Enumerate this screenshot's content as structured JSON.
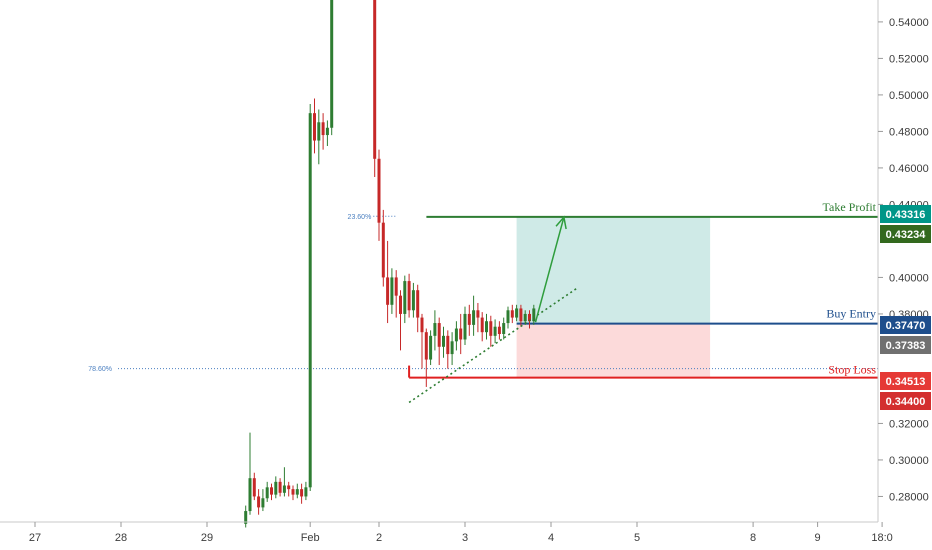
{
  "chart_data": {
    "type": "candlestick",
    "ylim": [
      0.266,
      0.552
    ],
    "x_ticks": [
      {
        "label": "27",
        "day": 0
      },
      {
        "label": "28",
        "day": 1
      },
      {
        "label": "29",
        "day": 2
      },
      {
        "label": "Feb",
        "day": 3.2
      },
      {
        "label": "2",
        "day": 4
      },
      {
        "label": "3",
        "day": 5
      },
      {
        "label": "4",
        "day": 6
      },
      {
        "label": "5",
        "day": 7
      },
      {
        "label": "8",
        "day": 8.35
      },
      {
        "label": "9",
        "day": 9.1
      },
      {
        "label": "18:0",
        "day": 9.85
      }
    ],
    "y_ticks": [
      "0.54000",
      "0.52000",
      "0.50000",
      "0.48000",
      "0.46000",
      "0.44000",
      "0.40000",
      "0.38000",
      "0.32000",
      "0.30000",
      "0.28000"
    ],
    "candles": [
      [
        2.45,
        0.265,
        0.272,
        0.263,
        0.275
      ],
      [
        2.5,
        0.272,
        0.29,
        0.27,
        0.315
      ],
      [
        2.55,
        0.29,
        0.28,
        0.278,
        0.293
      ],
      [
        2.6,
        0.28,
        0.274,
        0.27,
        0.284
      ],
      [
        2.65,
        0.274,
        0.279,
        0.272,
        0.284
      ],
      [
        2.7,
        0.279,
        0.285,
        0.277,
        0.288
      ],
      [
        2.75,
        0.285,
        0.281,
        0.278,
        0.287
      ],
      [
        2.8,
        0.281,
        0.288,
        0.279,
        0.291
      ],
      [
        2.85,
        0.288,
        0.282,
        0.28,
        0.29
      ],
      [
        2.9,
        0.282,
        0.286,
        0.28,
        0.296
      ],
      [
        2.95,
        0.286,
        0.284,
        0.28,
        0.288
      ],
      [
        3.0,
        0.284,
        0.281,
        0.278,
        0.286
      ],
      [
        3.05,
        0.281,
        0.284,
        0.279,
        0.287
      ],
      [
        3.1,
        0.284,
        0.28,
        0.276,
        0.287
      ],
      [
        3.15,
        0.28,
        0.285,
        0.278,
        0.288
      ],
      [
        3.2,
        0.285,
        0.49,
        0.283,
        0.495
      ],
      [
        3.25,
        0.49,
        0.475,
        0.468,
        0.498
      ],
      [
        3.3,
        0.475,
        0.485,
        0.462,
        0.492
      ],
      [
        3.35,
        0.485,
        0.478,
        0.47,
        0.49
      ],
      [
        3.4,
        0.478,
        0.482,
        0.472,
        0.486
      ],
      [
        3.45,
        0.482,
        0.552,
        0.478,
        0.556
      ],
      [
        3.95,
        0.552,
        0.465,
        0.455,
        0.556
      ],
      [
        4.0,
        0.465,
        0.43,
        0.42,
        0.47
      ],
      [
        4.05,
        0.43,
        0.4,
        0.395,
        0.437
      ],
      [
        4.1,
        0.4,
        0.385,
        0.375,
        0.42
      ],
      [
        4.15,
        0.385,
        0.4,
        0.38,
        0.405
      ],
      [
        4.2,
        0.4,
        0.39,
        0.378,
        0.404
      ],
      [
        4.25,
        0.39,
        0.38,
        0.36,
        0.393
      ],
      [
        4.3,
        0.38,
        0.398,
        0.375,
        0.401
      ],
      [
        4.35,
        0.398,
        0.382,
        0.378,
        0.402
      ],
      [
        4.4,
        0.382,
        0.393,
        0.378,
        0.397
      ],
      [
        4.45,
        0.393,
        0.378,
        0.37,
        0.396
      ],
      [
        4.5,
        0.378,
        0.37,
        0.35,
        0.38
      ],
      [
        4.55,
        0.37,
        0.355,
        0.34,
        0.372
      ],
      [
        4.6,
        0.355,
        0.368,
        0.352,
        0.371
      ],
      [
        4.65,
        0.368,
        0.375,
        0.36,
        0.382
      ],
      [
        4.7,
        0.375,
        0.362,
        0.352,
        0.378
      ],
      [
        4.75,
        0.362,
        0.368,
        0.356,
        0.373
      ],
      [
        4.8,
        0.368,
        0.358,
        0.35,
        0.371
      ],
      [
        4.85,
        0.358,
        0.365,
        0.352,
        0.37
      ],
      [
        4.9,
        0.365,
        0.372,
        0.36,
        0.376
      ],
      [
        4.95,
        0.372,
        0.366,
        0.358,
        0.38
      ],
      [
        5.0,
        0.366,
        0.38,
        0.363,
        0.384
      ],
      [
        5.05,
        0.38,
        0.374,
        0.368,
        0.385
      ],
      [
        5.1,
        0.374,
        0.382,
        0.368,
        0.39
      ],
      [
        5.15,
        0.382,
        0.378,
        0.37,
        0.386
      ],
      [
        5.2,
        0.378,
        0.37,
        0.365,
        0.381
      ],
      [
        5.25,
        0.37,
        0.376,
        0.366,
        0.38
      ],
      [
        5.3,
        0.376,
        0.368,
        0.362,
        0.379
      ],
      [
        5.35,
        0.368,
        0.373,
        0.364,
        0.377
      ],
      [
        5.4,
        0.373,
        0.369,
        0.366,
        0.376
      ],
      [
        5.45,
        0.369,
        0.375,
        0.366,
        0.378
      ],
      [
        5.5,
        0.375,
        0.382,
        0.372,
        0.384
      ],
      [
        5.55,
        0.382,
        0.378,
        0.375,
        0.385
      ],
      [
        5.6,
        0.378,
        0.383,
        0.376,
        0.385
      ],
      [
        5.65,
        0.383,
        0.376,
        0.373,
        0.385
      ],
      [
        5.7,
        0.376,
        0.38,
        0.374,
        0.382
      ],
      [
        5.75,
        0.38,
        0.376,
        0.372,
        0.382
      ],
      [
        5.8,
        0.376,
        0.383,
        0.374,
        0.385
      ]
    ],
    "levels": [
      {
        "name": "Take Profit",
        "value": 0.43316,
        "value_label": "0.43316",
        "color": "#2e7d32",
        "badge_color": "#009688"
      },
      {
        "name": "",
        "value": 0.43234,
        "value_label": "0.43234",
        "color": "#2e7d32",
        "badge_color": "#33691e"
      },
      {
        "name": "Buy Entry",
        "value": 0.3747,
        "value_label": "0.37470",
        "color": "#1e4e8c",
        "badge_color": "#1e4e8c"
      },
      {
        "name": "",
        "value": 0.37383,
        "value_label": "0.37383",
        "color": "#5a5a5a",
        "badge_color": "#707070"
      },
      {
        "name": "Stop Loss",
        "value": 0.34513,
        "value_label": "0.34513",
        "color": "#e02020",
        "badge_color": "#e53935"
      },
      {
        "name": "",
        "value": 0.344,
        "value_label": "0.34400",
        "color": "#e02020",
        "badge_color": "#d32f2f"
      }
    ],
    "fib_levels": [
      {
        "label": "23.60%",
        "value": 0.4335
      },
      {
        "label": "78.60%",
        "value": 0.35
      }
    ],
    "position": {
      "start_day": 5.6,
      "end_day": 7.85,
      "entry": 0.3747,
      "target": 0.4332,
      "stop": 0.3451
    },
    "trendline": {
      "from": [
        4.35,
        0.3315
      ],
      "to": [
        6.3,
        0.394
      ]
    },
    "projection_arrow": {
      "from": [
        5.82,
        0.3755
      ],
      "to": [
        6.15,
        0.433
      ]
    },
    "colors": {
      "up": "#2e7d32",
      "down": "#c62828",
      "profit_zone": "#cfeae7",
      "loss_zone": "#fcdada"
    }
  }
}
